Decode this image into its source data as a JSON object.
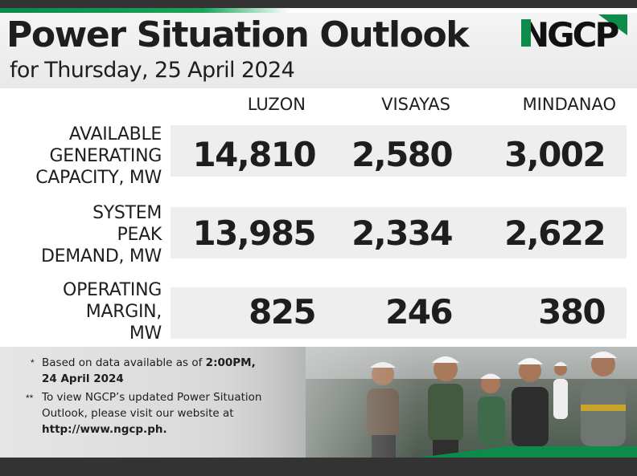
{
  "header": {
    "title": "Power Situation Outlook",
    "subtitle": "for Thursday, 25 April 2024",
    "logo_text": "NGCP"
  },
  "columns": [
    "LUZON",
    "VISAYAS",
    "MINDANAO"
  ],
  "rows": [
    {
      "label_lines": [
        "AVAILABLE",
        "GENERATING",
        "CAPACITY, MW"
      ],
      "values": [
        "14,810",
        "2,580",
        "3,002"
      ]
    },
    {
      "label_lines": [
        "SYSTEM",
        "PEAK",
        "DEMAND, MW"
      ],
      "values": [
        "13,985",
        "2,334",
        "2,622"
      ]
    },
    {
      "label_lines": [
        "OPERATING",
        "MARGIN,",
        "MW"
      ],
      "values": [
        "825",
        "246",
        "380"
      ]
    }
  ],
  "notes": {
    "note1_marker": "*",
    "note1_text": "Based on data available as of ",
    "note1_time": "2:00PM,",
    "note1_date": "24 April 2024",
    "note2_marker": "**",
    "note2_line1": "To view NGCP’s updated Power Situation",
    "note2_line2": "Outlook, please visit our website at",
    "note2_url": "http://www.ngcp.ph."
  },
  "colors": {
    "brand_green": "#0e8a4a",
    "dark": "#333333",
    "text": "#1e1e1e",
    "band": "#eeeeee"
  }
}
